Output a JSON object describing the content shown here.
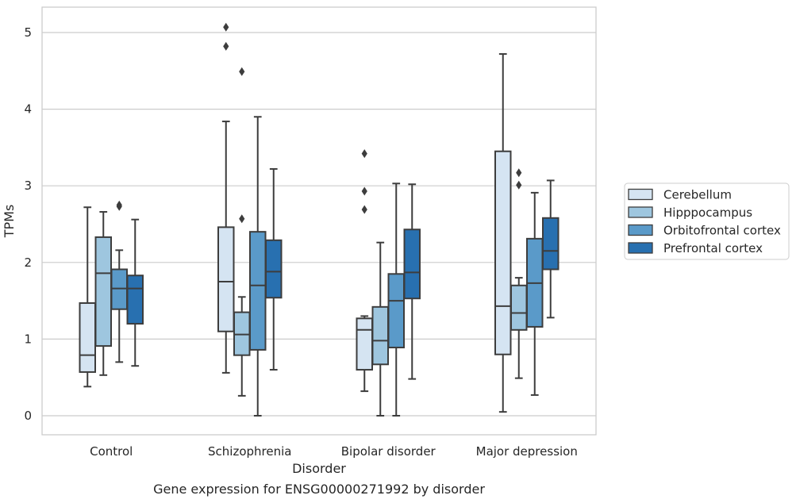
{
  "chart_data": {
    "type": "boxplot",
    "title": "",
    "caption": "Gene expression for ENSG00000271992 by disorder",
    "xlabel": "Disorder",
    "ylabel": "TPMs",
    "ylim": [
      -0.25,
      5.33
    ],
    "yticks": [
      0,
      1,
      2,
      3,
      4,
      5
    ],
    "grid": "horizontal",
    "legend_position": "right",
    "categories": [
      "Control",
      "Schizophrenia",
      "Bipolar disorder",
      "Major depression"
    ],
    "series": [
      {
        "name": "Cerebellum",
        "color": "#d5e4f2",
        "boxes": [
          {
            "whislo": 0.38,
            "q1": 0.57,
            "med": 0.79,
            "q3": 1.47,
            "whishi": 2.72,
            "fliers": []
          },
          {
            "whislo": 0.56,
            "q1": 1.1,
            "med": 1.75,
            "q3": 2.46,
            "whishi": 3.84,
            "fliers": [
              4.82,
              5.07
            ]
          },
          {
            "whislo": 0.32,
            "q1": 0.6,
            "med": 1.12,
            "q3": 1.27,
            "whishi": 1.3,
            "fliers": [
              2.69,
              2.93,
              3.42
            ]
          },
          {
            "whislo": 0.05,
            "q1": 0.8,
            "med": 1.43,
            "q3": 3.45,
            "whishi": 4.72,
            "fliers": []
          }
        ]
      },
      {
        "name": "Hipppocampus",
        "color": "#9ec6df",
        "boxes": [
          {
            "whislo": 0.53,
            "q1": 0.91,
            "med": 1.86,
            "q3": 2.33,
            "whishi": 2.66,
            "fliers": []
          },
          {
            "whislo": 0.26,
            "q1": 0.79,
            "med": 1.06,
            "q3": 1.35,
            "whishi": 1.55,
            "fliers": [
              2.57,
              4.49
            ]
          },
          {
            "whislo": 0.0,
            "q1": 0.67,
            "med": 0.98,
            "q3": 1.42,
            "whishi": 2.26,
            "fliers": []
          },
          {
            "whislo": 0.49,
            "q1": 1.12,
            "med": 1.34,
            "q3": 1.7,
            "whishi": 1.8,
            "fliers": [
              3.01,
              3.17
            ]
          }
        ]
      },
      {
        "name": "Orbitofrontal cortex",
        "color": "#5a9ac9",
        "boxes": [
          {
            "whislo": 0.7,
            "q1": 1.39,
            "med": 1.66,
            "q3": 1.91,
            "whishi": 2.16,
            "fliers": [
              2.73,
              2.75
            ]
          },
          {
            "whislo": 0.0,
            "q1": 0.86,
            "med": 1.7,
            "q3": 2.4,
            "whishi": 3.9,
            "fliers": []
          },
          {
            "whislo": 0.0,
            "q1": 0.89,
            "med": 1.5,
            "q3": 1.85,
            "whishi": 3.03,
            "fliers": []
          },
          {
            "whislo": 0.27,
            "q1": 1.16,
            "med": 1.73,
            "q3": 2.31,
            "whishi": 2.91,
            "fliers": []
          }
        ]
      },
      {
        "name": "Prefrontal cortex",
        "color": "#2870b0",
        "boxes": [
          {
            "whislo": 0.65,
            "q1": 1.2,
            "med": 1.66,
            "q3": 1.83,
            "whishi": 2.56,
            "fliers": []
          },
          {
            "whislo": 0.6,
            "q1": 1.54,
            "med": 1.88,
            "q3": 2.29,
            "whishi": 3.22,
            "fliers": []
          },
          {
            "whislo": 0.48,
            "q1": 1.53,
            "med": 1.87,
            "q3": 2.43,
            "whishi": 3.02,
            "fliers": []
          },
          {
            "whislo": 1.28,
            "q1": 1.91,
            "med": 2.15,
            "q3": 2.58,
            "whishi": 3.07,
            "fliers": []
          }
        ]
      }
    ]
  }
}
